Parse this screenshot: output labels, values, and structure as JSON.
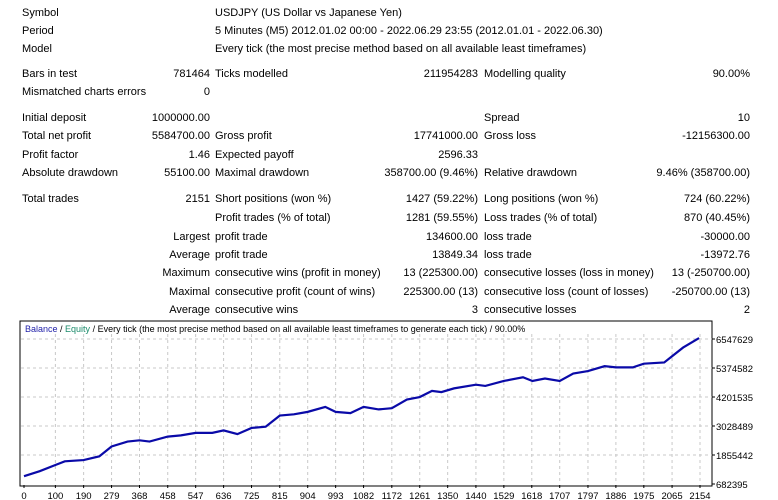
{
  "info": {
    "symbol_label": "Symbol",
    "symbol": "USDJPY (US Dollar vs Japanese Yen)",
    "period_label": "Period",
    "period": "5 Minutes (M5) 2012.01.02 00:00 - 2022.06.29 23:55 (2012.01.01 - 2022.06.30)",
    "model_label": "Model",
    "model": "Every tick (the most precise method based on all available least timeframes)"
  },
  "rows": [
    {
      "l1": "Bars in test",
      "v1": "781464",
      "l2": "Ticks modelled",
      "v2": "211954283",
      "l3": "Modelling quality",
      "v3": "90.00%"
    },
    {
      "l1": "Mismatched charts errors",
      "v1": "0",
      "l2": "",
      "v2": "",
      "l3": "",
      "v3": ""
    },
    {
      "l1": "Initial deposit",
      "v1": "1000000.00",
      "l2": "",
      "v2": "",
      "l3": "Spread",
      "v3": "10"
    },
    {
      "l1": "Total net profit",
      "v1": "5584700.00",
      "l2": "Gross profit",
      "v2": "17741000.00",
      "l3": "Gross loss",
      "v3": "-12156300.00"
    },
    {
      "l1": "Profit factor",
      "v1": "1.46",
      "l2": "Expected payoff",
      "v2": "2596.33",
      "l3": "",
      "v3": ""
    },
    {
      "l1": "Absolute drawdown",
      "v1": "55100.00",
      "l2": "Maximal drawdown",
      "v2": "358700.00 (9.46%)",
      "l3": "Relative drawdown",
      "v3": "9.46% (358700.00)"
    },
    {
      "l1": "Total trades",
      "v1": "2151",
      "l2": "Short positions (won %)",
      "v2": "1427 (59.22%)",
      "l3": "Long positions (won %)",
      "v3": "724 (60.22%)"
    },
    {
      "l1": "",
      "v1": "",
      "l2": "Profit trades (% of total)",
      "v2": "1281 (59.55%)",
      "l3": "Loss trades (% of total)",
      "v3": "870 (40.45%)"
    },
    {
      "l1": "",
      "v1": "Largest",
      "l2": "profit trade",
      "v2": "134600.00",
      "l3": "loss trade",
      "v3": "-30000.00"
    },
    {
      "l1": "",
      "v1": "Average",
      "l2": "profit trade",
      "v2": "13849.34",
      "l3": "loss trade",
      "v3": "-13972.76"
    },
    {
      "l1": "",
      "v1": "Maximum",
      "l2": "consecutive wins (profit in money)",
      "v2": "13 (225300.00)",
      "l3": "consecutive losses (loss in money)",
      "v3": "13 (-250700.00)"
    },
    {
      "l1": "",
      "v1": "Maximal",
      "l2": "consecutive profit (count of wins)",
      "v2": "225300.00 (13)",
      "l3": "consecutive loss (count of losses)",
      "v3": "-250700.00 (13)"
    },
    {
      "l1": "",
      "v1": "Average",
      "l2": "consecutive wins",
      "v2": "3",
      "l3": "consecutive losses",
      "v3": "2"
    }
  ],
  "chart_data": {
    "type": "line",
    "legend": {
      "balance": "Balance",
      "equity": "Equity",
      "rest": " / Every tick (the most precise method based on all available least timeframes to generate each tick)    / 90.00%"
    },
    "colors": {
      "balance": "#1f1fa8",
      "equity": "#1a8a6a",
      "line": "#0a0aa8",
      "grid": "#c8c8c8"
    },
    "xlabel": "",
    "ylabel": "",
    "x_ticks": [
      0,
      100,
      190,
      279,
      368,
      458,
      547,
      636,
      725,
      815,
      904,
      993,
      1082,
      1172,
      1261,
      1350,
      1440,
      1529,
      1618,
      1707,
      1797,
      1886,
      1975,
      2065,
      2154
    ],
    "y_ticks": [
      682395,
      1855442,
      3028489,
      4201535,
      5374582,
      6547629
    ],
    "xlim": [
      0,
      2180
    ],
    "ylim": [
      682395,
      6800000
    ],
    "series": [
      {
        "name": "Balance",
        "x": [
          0,
          50,
          100,
          130,
          190,
          240,
          279,
          330,
          368,
          400,
          458,
          500,
          547,
          600,
          636,
          680,
          725,
          770,
          815,
          860,
          904,
          960,
          993,
          1040,
          1082,
          1130,
          1172,
          1220,
          1261,
          1300,
          1330,
          1370,
          1440,
          1470,
          1529,
          1590,
          1620,
          1660,
          1707,
          1750,
          1797,
          1850,
          1886,
          1940,
          1975,
          2040,
          2065,
          2100,
          2151
        ],
        "values": [
          1000000,
          1200000,
          1450000,
          1600000,
          1650000,
          1800000,
          2200000,
          2400000,
          2450000,
          2400000,
          2600000,
          2650000,
          2750000,
          2750000,
          2850000,
          2700000,
          2950000,
          3000000,
          3450000,
          3500000,
          3600000,
          3800000,
          3600000,
          3550000,
          3800000,
          3700000,
          3750000,
          4100000,
          4200000,
          4450000,
          4400000,
          4550000,
          4700000,
          4650000,
          4850000,
          5000000,
          4850000,
          4950000,
          4850000,
          5150000,
          5250000,
          5450000,
          5400000,
          5400000,
          5550000,
          5600000,
          5850000,
          6200000,
          6584700
        ]
      }
    ]
  }
}
